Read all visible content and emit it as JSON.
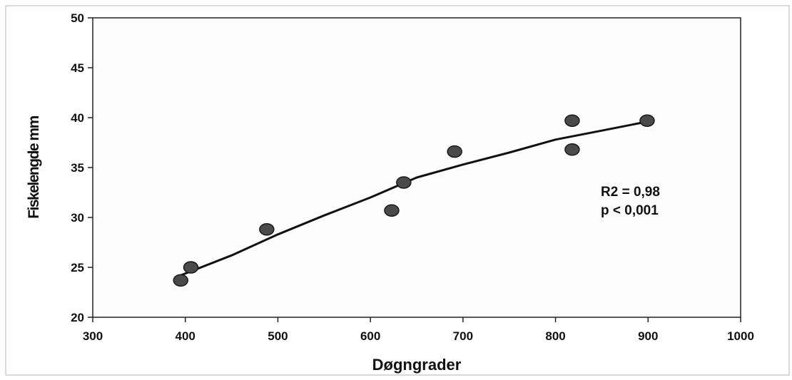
{
  "chart_data": {
    "type": "scatter",
    "title": "",
    "xlabel": "Døgngrader",
    "ylabel": "Fiskelengde mm",
    "xlim": [
      300,
      1000
    ],
    "ylim": [
      20,
      50
    ],
    "x_ticks": [
      "300",
      "400",
      "500",
      "600",
      "700",
      "800",
      "900",
      "1000"
    ],
    "y_ticks": [
      "20",
      "25",
      "30",
      "35",
      "40",
      "45",
      "50"
    ],
    "grid": false,
    "legend": "none",
    "series": [
      {
        "points": [
          {
            "x": 395,
            "y": 23.7
          },
          {
            "x": 406,
            "y": 25.0
          },
          {
            "x": 488,
            "y": 28.8
          },
          {
            "x": 623,
            "y": 30.7
          },
          {
            "x": 636,
            "y": 33.5
          },
          {
            "x": 691,
            "y": 36.6
          },
          {
            "x": 818,
            "y": 39.7
          },
          {
            "x": 818,
            "y": 36.8
          },
          {
            "x": 899,
            "y": 39.7
          }
        ],
        "color": "#4a4a4a"
      }
    ],
    "trendline": {
      "type": "power",
      "points": [
        {
          "x": 395,
          "y": 24.2
        },
        {
          "x": 450,
          "y": 26.2
        },
        {
          "x": 500,
          "y": 28.3
        },
        {
          "x": 550,
          "y": 30.2
        },
        {
          "x": 600,
          "y": 32.0
        },
        {
          "x": 650,
          "y": 34.0
        },
        {
          "x": 700,
          "y": 35.3
        },
        {
          "x": 750,
          "y": 36.5
        },
        {
          "x": 800,
          "y": 37.8
        },
        {
          "x": 850,
          "y": 38.7
        },
        {
          "x": 899,
          "y": 39.6
        }
      ]
    },
    "annotations": [
      "R2 = 0,98",
      "p < 0,001"
    ]
  }
}
